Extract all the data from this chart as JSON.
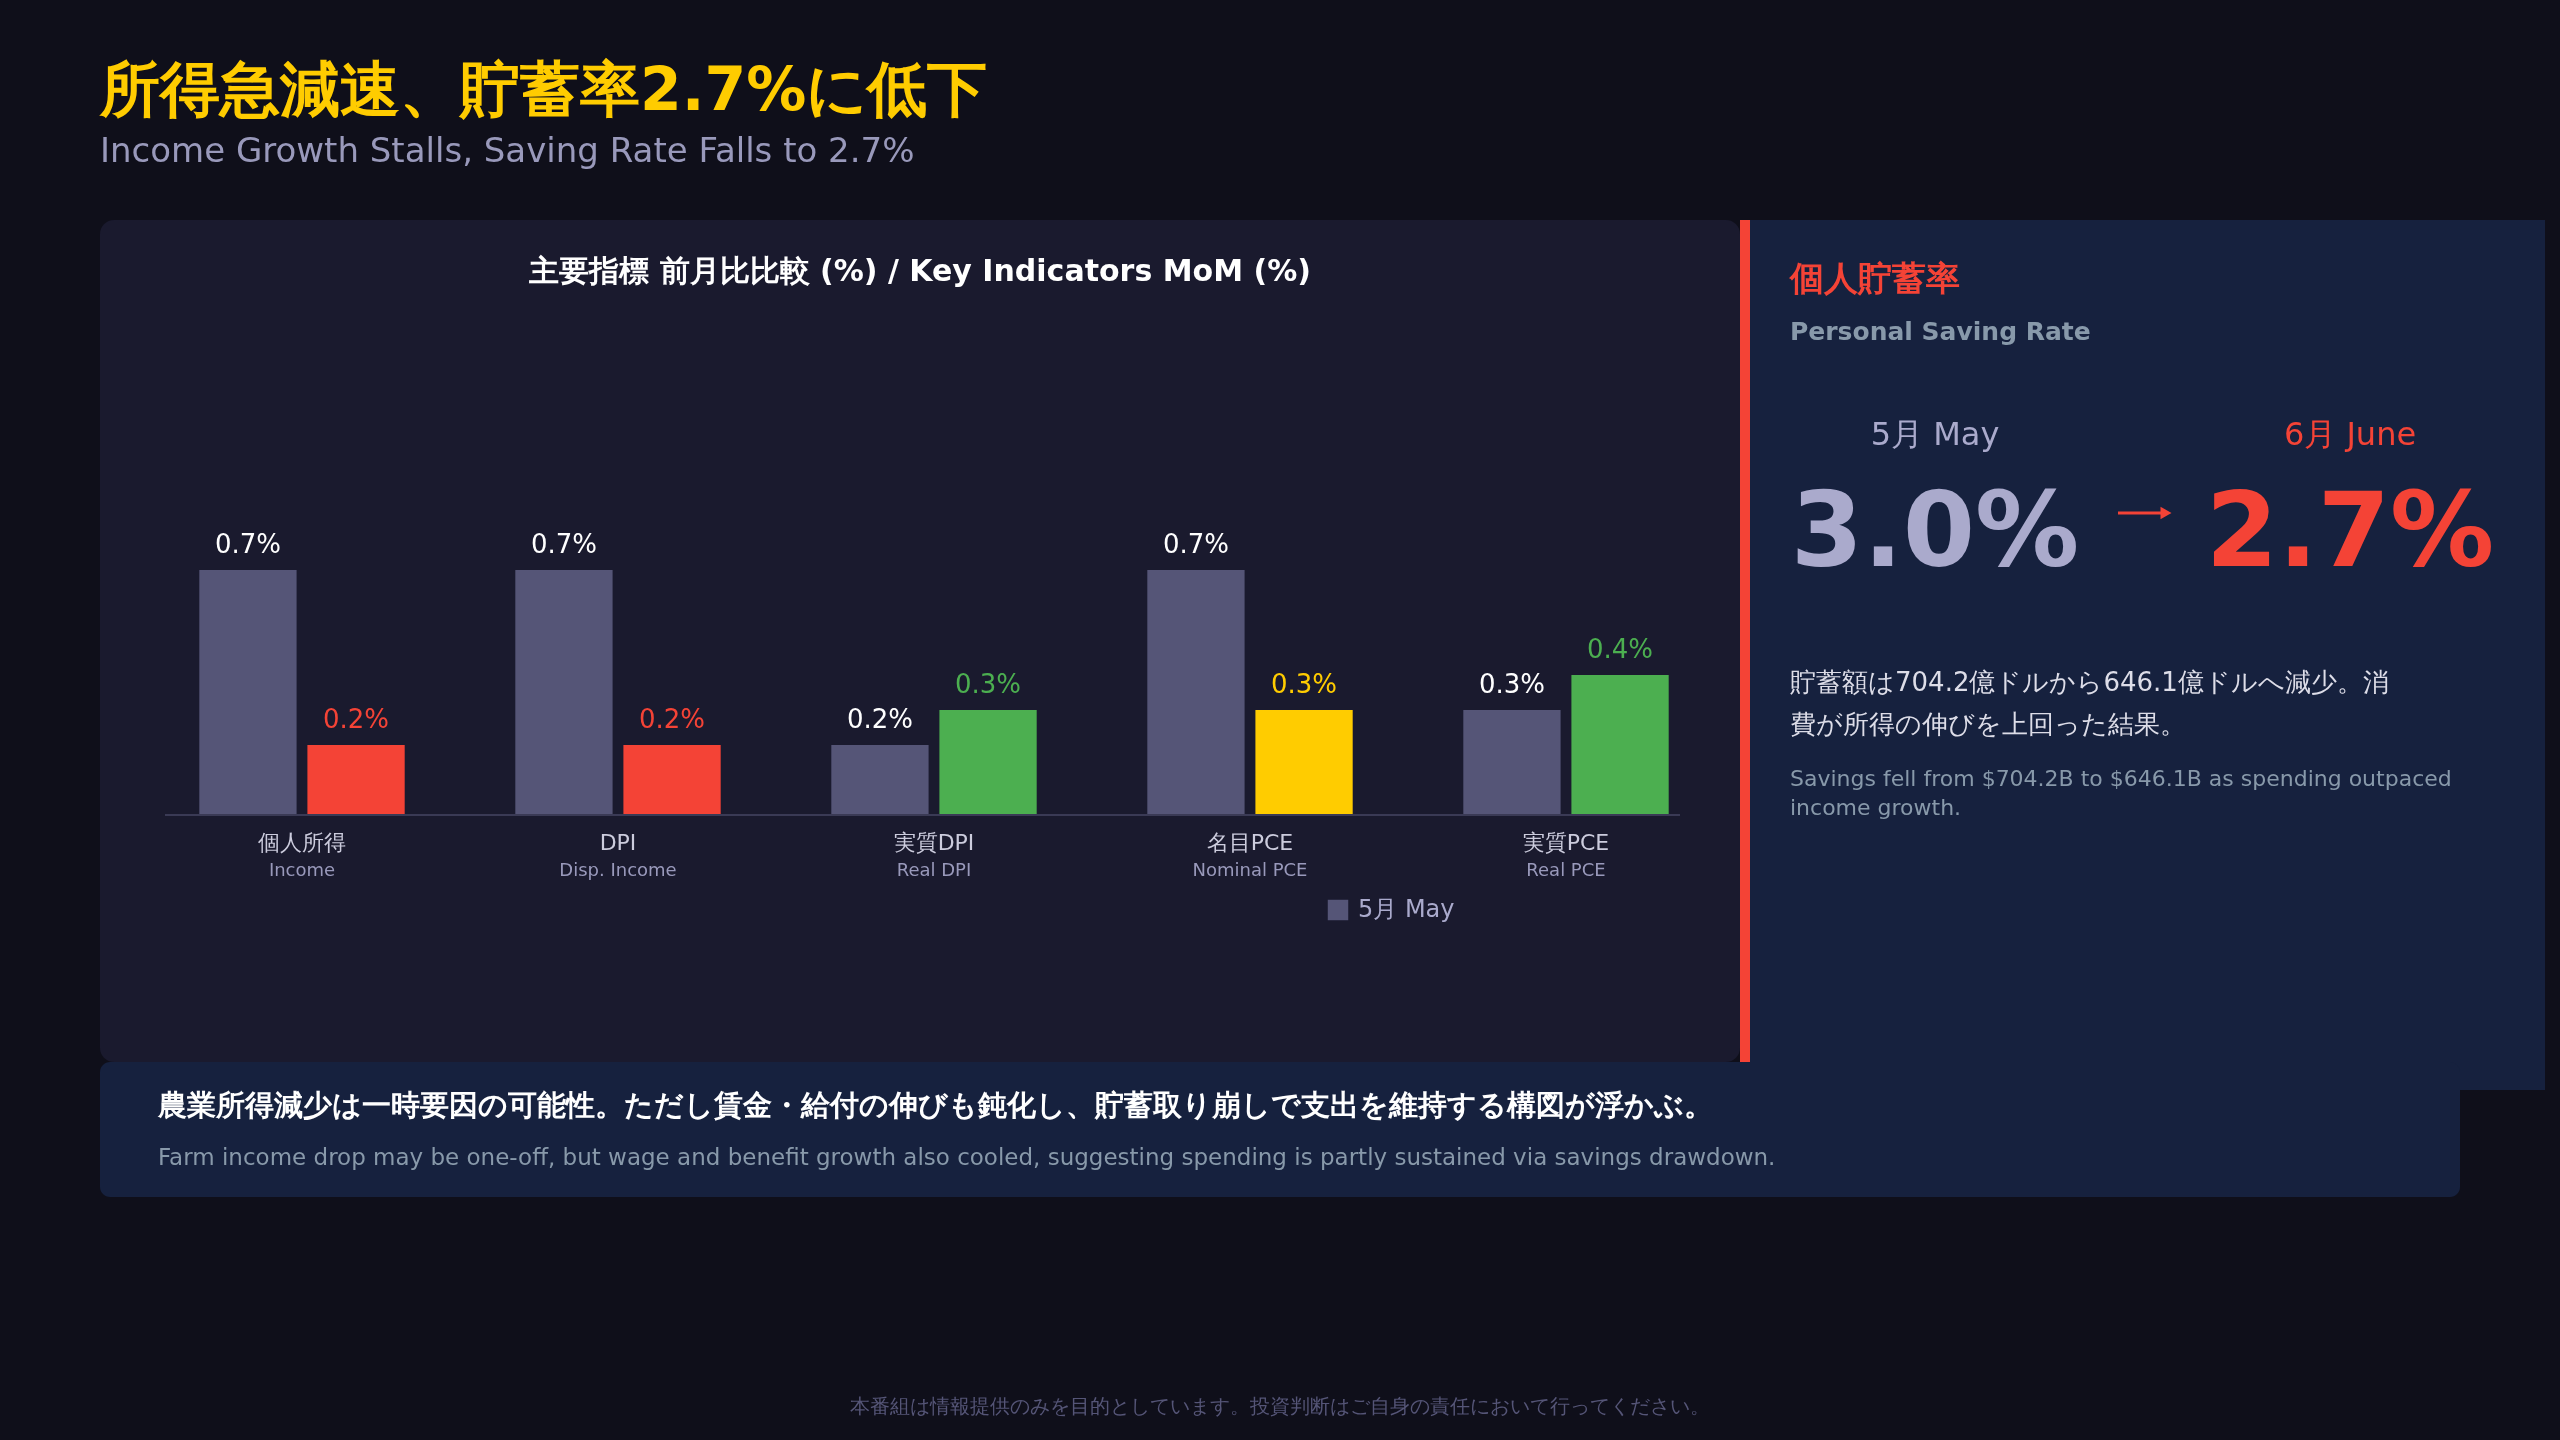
{
  "chart_data": [
    {
      "type": "other",
      "title": "所得急減速、貯蓄率2.7%に低下",
      "subtitle": "Income Growth Stalls, Saving Rate Falls to 2.7%"
    },
    {
      "type": "bar",
      "title": "主要指標 前月比比較 (%) / Key Indicators MoM (%)",
      "categories": [
        "個人所得\nIncome",
        "DPI\nDisp. Income",
        "実質DPI\nReal DPI",
        "名目PCE\nNominal PCE",
        "実質PCE\nReal PCE"
      ],
      "series": [
        {
          "name": "5月 May",
          "color": "#555577",
          "values": [
            0.7,
            0.7,
            0.2,
            0.7,
            0.3
          ],
          "value_labels": [
            "0.7%",
            "0.7%",
            "0.2%",
            "0.7%",
            "0.3%"
          ]
        },
        {
          "colors": [
            "#f44336",
            "#f44336",
            "#4caf50",
            "#ffcc00",
            "#4caf50"
          ],
          "values": [
            0.2,
            0.2,
            0.3,
            0.3,
            0.4
          ],
          "value_labels": [
            "0.2%",
            "0.2%",
            "0.3%",
            "0.3%",
            "0.4%"
          ]
        }
      ],
      "legend": "bottom"
    },
    {
      "type": "other",
      "title": "個人貯蓄率",
      "subtitle": "Personal Saving Rate",
      "categories": [
        "5月 May",
        "6月 June"
      ],
      "values": [
        3.0,
        2.7
      ],
      "value_labels": [
        "3.0%",
        "2.7%"
      ],
      "colors": [
        "#aaaacc",
        "#f44336"
      ],
      "annotations": [
        "貯蓄額は704.2億ドルから646.1億ドルへ減少。消費が所得の伸びを上回った結果。",
        "Savings fell from $704.2B to $646.1B as spending outpaced income growth."
      ]
    },
    {
      "type": "other",
      "annotations": [
        "農業所得減少は一時要因の可能性。ただし賃金・給付の伸びも鈍化し、貯蓄取り崩しで支出を維持する構図が浮かぶ。",
        "Farm income drop may be one-off, but wage and benefit growth also cooled, suggesting spending is partly sustained via savings drawdown.",
        "本番組は情報提供のみを目的としています。投資判断はご自身の責任において行ってください。"
      ]
    }
  ]
}
